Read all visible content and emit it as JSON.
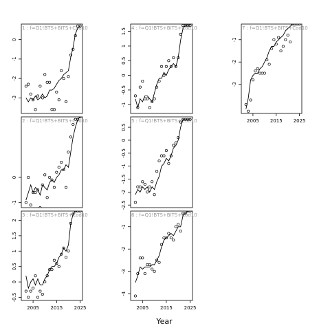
{
  "figure": {
    "xlabel": "Year",
    "x_ticks": [
      2005,
      2015,
      2025
    ],
    "xlim": [
      2000,
      2026
    ],
    "colors": {
      "line": "#000000",
      "axis": "#000000",
      "panel_label": "#999999",
      "background": "#ffffff"
    }
  },
  "chart_data": [
    {
      "type": "line",
      "title": "1 : f=Q1!BTS+BITS+Cod10",
      "ylim": [
        -3.8,
        0.8
      ],
      "y_ticks": [
        0,
        -1,
        -2,
        -3
      ],
      "x_ticks_visible": false,
      "series": [
        {
          "values": [
            -3.0,
            -3.2,
            -3.0,
            -3.1,
            -2.9,
            -3.1,
            -3.0,
            -2.8,
            -3.0,
            -2.9,
            -2.6,
            -2.6,
            -2.5,
            -2.3,
            -2.1,
            -2.0,
            -1.8,
            -1.7,
            -1.6,
            -0.9,
            -0.4,
            0.3,
            0.6,
            0.7
          ]
        },
        {
          "values": [
            -2.4,
            -2.3,
            -2.8,
            -3.1,
            -3.6,
            -2.9,
            -2.4,
            -3.0,
            -1.8,
            -2.2,
            -2.2,
            -3.6,
            -3.6,
            -2.7,
            -3.1,
            -1.6,
            -2.0,
            -3.2,
            -1.9,
            -0.8,
            -0.5,
            0.2,
            0.7,
            0.7
          ]
        }
      ],
      "x": [
        2002,
        2003,
        2004,
        2005,
        2006,
        2007,
        2008,
        2009,
        2010,
        2011,
        2012,
        2013,
        2014,
        2015,
        2016,
        2017,
        2018,
        2019,
        2020,
        2021,
        2022,
        2023,
        2024,
        2025
      ]
    },
    {
      "type": "line",
      "title": "2 : f=Q1!BTS+BITS+Cod10",
      "ylim": [
        -1.2,
        2.4
      ],
      "y_ticks": [
        0,
        -1
      ],
      "x_ticks_visible": false,
      "series": [
        {
          "values": [
            -0.9,
            -0.6,
            -0.3,
            -0.6,
            -0.4,
            -0.5,
            -0.7,
            -0.3,
            -0.4,
            -0.5,
            -0.2,
            -0.1,
            -0.2,
            0.0,
            0.1,
            0.3,
            0.3,
            0.5,
            0.4,
            1.0,
            1.6,
            2.0,
            2.3,
            2.4
          ]
        },
        {
          "values": [
            -1.0,
            0.0,
            -1.1,
            -0.6,
            -0.6,
            -0.5,
            -1.2,
            -0.3,
            0.1,
            -0.8,
            0.0,
            -0.1,
            -0.4,
            0.2,
            0.4,
            0.6,
            0.3,
            -0.4,
            1.0,
            1.6,
            2.1,
            2.3,
            2.3,
            2.4
          ]
        }
      ],
      "x": [
        2002,
        2003,
        2004,
        2005,
        2006,
        2007,
        2008,
        2009,
        2010,
        2011,
        2012,
        2013,
        2014,
        2015,
        2016,
        2017,
        2018,
        2019,
        2020,
        2021,
        2022,
        2023,
        2024,
        2025
      ]
    },
    {
      "type": "line",
      "title": "3 : f=Q1!BTS+BITS+Cod10",
      "ylim": [
        -0.6,
        2.3
      ],
      "y_ticks": [
        2.0,
        1.5,
        1.0,
        0.5,
        0.0,
        -0.5
      ],
      "x_ticks_visible": true,
      "series": [
        {
          "values": [
            0.2,
            -0.2,
            0.0,
            0.1,
            -0.1,
            0.1,
            -0.1,
            -0.1,
            0.1,
            0.2,
            0.4,
            0.5,
            0.5,
            0.6,
            0.8,
            0.9,
            1.1,
            1.0,
            1.2,
            1.9,
            2.2,
            2.3,
            2.3,
            2.3
          ]
        },
        {
          "values": [
            -0.3,
            -0.5,
            -0.3,
            -0.2,
            0.2,
            -0.5,
            -0.3,
            -0.4,
            0.0,
            0.2,
            0.4,
            0.4,
            0.7,
            0.6,
            0.5,
            0.9,
            1.1,
            0.8,
            1.0,
            1.9,
            2.2,
            2.3,
            2.3,
            2.3
          ]
        }
      ],
      "x": [
        2002,
        2003,
        2004,
        2005,
        2006,
        2007,
        2008,
        2009,
        2010,
        2011,
        2012,
        2013,
        2014,
        2015,
        2016,
        2017,
        2018,
        2019,
        2020,
        2021,
        2022,
        2023,
        2024,
        2025
      ]
    },
    {
      "type": "line",
      "title": "4 : f=Q1!BTS+BITS+Cod10",
      "ylim": [
        -1.3,
        1.75
      ],
      "y_ticks": [
        1.5,
        1.0,
        0.5,
        0.0,
        -0.5,
        -1.0
      ],
      "x_ticks_visible": false,
      "series": [
        {
          "values": [
            -0.8,
            -1.1,
            -0.8,
            -0.9,
            -0.7,
            -0.7,
            -0.8,
            -0.9,
            -0.6,
            -0.3,
            -0.1,
            -0.1,
            0.1,
            0.0,
            0.2,
            0.3,
            0.4,
            0.3,
            0.6,
            1.2,
            1.6,
            1.7,
            1.7,
            1.7
          ]
        },
        {
          "values": [
            -0.7,
            -1.1,
            -0.4,
            -0.2,
            -0.8,
            -0.8,
            -1.1,
            -0.9,
            -0.8,
            -0.4,
            -0.2,
            0.3,
            0.0,
            0.3,
            0.5,
            0.3,
            0.6,
            0.3,
            0.6,
            1.4,
            1.7,
            1.7,
            1.7,
            1.7
          ]
        }
      ],
      "x": [
        2002,
        2003,
        2004,
        2005,
        2006,
        2007,
        2008,
        2009,
        2010,
        2011,
        2012,
        2013,
        2014,
        2015,
        2016,
        2017,
        2018,
        2019,
        2020,
        2021,
        2022,
        2023,
        2024,
        2025
      ]
    },
    {
      "type": "line",
      "title": "5 : f=Q1!BTS+BITS+Cod10",
      "ylim": [
        -2.6,
        0.9
      ],
      "y_ticks": [
        0.5,
        0.0,
        -0.5,
        -1.0,
        -1.5,
        -2.0,
        -2.5
      ],
      "x_ticks_visible": false,
      "series": [
        {
          "values": [
            -2.1,
            -1.9,
            -2.0,
            -1.8,
            -1.9,
            -1.8,
            -2.0,
            -1.8,
            -1.9,
            -1.6,
            -1.4,
            -1.0,
            -0.9,
            -0.7,
            -0.8,
            -0.6,
            -0.3,
            -0.2,
            0.0,
            0.5,
            0.8,
            0.8,
            0.8,
            0.8
          ]
        },
        {
          "values": [
            -2.4,
            -1.8,
            -1.8,
            -1.6,
            -1.7,
            -2.0,
            -1.8,
            -1.6,
            -2.1,
            -1.2,
            -0.8,
            -0.6,
            -0.6,
            -0.4,
            -0.9,
            -0.6,
            -0.2,
            -0.1,
            0.1,
            0.7,
            0.8,
            0.8,
            0.8,
            0.8
          ]
        }
      ],
      "x": [
        2002,
        2003,
        2004,
        2005,
        2006,
        2007,
        2008,
        2009,
        2010,
        2011,
        2012,
        2013,
        2014,
        2015,
        2016,
        2017,
        2018,
        2019,
        2020,
        2021,
        2022,
        2023,
        2024,
        2025
      ]
    },
    {
      "type": "line",
      "title": "6 : f=Q1!BTS+BITS+Cod10",
      "ylim": [
        -4.3,
        -0.3
      ],
      "y_ticks": [
        -1,
        -2,
        -3,
        -4
      ],
      "x_ticks_visible": true,
      "series": [
        {
          "values": [
            -3.5,
            -3.2,
            -2.8,
            -2.9,
            -2.8,
            -2.8,
            -2.8,
            -2.7,
            -2.7,
            -2.5,
            -2.3,
            -1.9,
            -1.6,
            -1.5,
            -1.4,
            -1.3,
            -1.4,
            -1.2,
            -1.0,
            -1.0,
            -0.5,
            -0.4,
            -0.3,
            -0.3
          ]
        },
        {
          "values": [
            -4.1,
            -3.1,
            -2.4,
            -2.4,
            -3.1,
            -2.7,
            -2.7,
            -2.9,
            -3.0,
            -2.5,
            -2.6,
            -1.8,
            -1.5,
            -1.5,
            -1.3,
            -1.5,
            -1.6,
            -1.0,
            -0.9,
            -1.2,
            -0.4,
            -0.4,
            -0.3,
            -0.3
          ]
        }
      ],
      "x": [
        2002,
        2003,
        2004,
        2005,
        2006,
        2007,
        2008,
        2009,
        2010,
        2011,
        2012,
        2013,
        2014,
        2015,
        2016,
        2017,
        2018,
        2019,
        2020,
        2021,
        2022,
        2023,
        2024,
        2025
      ]
    },
    {
      "type": "line",
      "title": "7 : f=Q1!BTS+BITS+Cod10",
      "ylim": [
        -4.3,
        -0.3
      ],
      "y_ticks": [
        -1,
        -2,
        -3
      ],
      "x_ticks_visible": true,
      "series": [
        {
          "values": [
            -4.1,
            -3.6,
            -2.8,
            -2.6,
            -2.5,
            -2.5,
            -2.3,
            -2.2,
            -2.0,
            -1.8,
            -1.5,
            -1.3,
            -1.3,
            -1.1,
            -1.0,
            -0.9,
            -0.8,
            -0.6,
            -0.5,
            -0.4,
            -0.3,
            -0.3,
            -0.3,
            -0.3
          ]
        },
        {
          "values": [
            -3.9,
            -4.2,
            -3.7,
            -2.8,
            -2.4,
            -2.3,
            -2.5,
            -2.5,
            -2.5,
            -1.9,
            -2.1,
            -1.4,
            -1.0,
            -1.2,
            -0.9,
            -1.5,
            -1.3,
            -1.0,
            -0.8,
            -1.1,
            -0.3,
            -0.3,
            -0.3,
            -0.3
          ]
        }
      ],
      "x": [
        2002,
        2003,
        2004,
        2005,
        2006,
        2007,
        2008,
        2009,
        2010,
        2011,
        2012,
        2013,
        2014,
        2015,
        2016,
        2017,
        2018,
        2019,
        2020,
        2021,
        2022,
        2023,
        2024,
        2025
      ]
    }
  ]
}
